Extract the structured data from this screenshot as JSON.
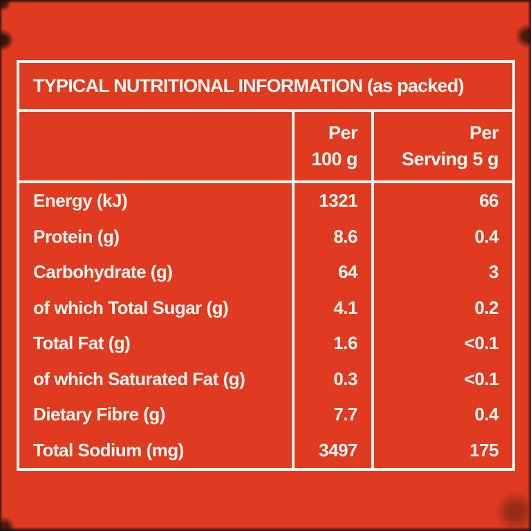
{
  "colors": {
    "background_red": "#e03a20",
    "line_white": "#faf6f0",
    "edge_dark": "#1a100b"
  },
  "table": {
    "title": "TYPICAL NUTRITIONAL INFORMATION (as packed)",
    "columns": {
      "per100": {
        "line1": "Per",
        "line2": "100 g"
      },
      "serving": {
        "line1": "Per",
        "line2": "Serving 5 g"
      }
    },
    "rows": [
      {
        "label": "Energy (kJ)",
        "per100": "1321",
        "serving": "66"
      },
      {
        "label": "Protein (g)",
        "per100": "8.6",
        "serving": "0.4"
      },
      {
        "label": "Carbohydrate (g)",
        "per100": "64",
        "serving": "3"
      },
      {
        "label": "of which Total Sugar (g)",
        "per100": "4.1",
        "serving": "0.2"
      },
      {
        "label": "Total Fat (g)",
        "per100": "1.6",
        "serving": "<0.1"
      },
      {
        "label": "of which Saturated Fat (g)",
        "per100": "0.3",
        "serving": "<0.1"
      },
      {
        "label": "Dietary Fibre (g)",
        "per100": "7.7",
        "serving": "0.4"
      },
      {
        "label": "Total Sodium (mg)",
        "per100": "3497",
        "serving": "175"
      }
    ]
  }
}
